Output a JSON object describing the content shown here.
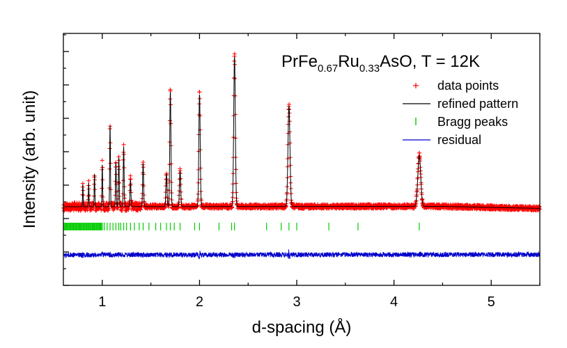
{
  "chart_data": {
    "type": "scatter",
    "title_parts": {
      "prefix": "PrFe",
      "sub1": "0.67",
      "mid": "Ru",
      "sub2": "0.33",
      "suffix": "AsO, T = 12K"
    },
    "xlabel": "d-spacing (Å)",
    "ylabel": "Intensity (arb. unit)",
    "xlim": [
      0.6,
      5.5
    ],
    "x_ticks": [
      "1",
      "2",
      "3",
      "4",
      "5"
    ],
    "y_ticks_labeled": false,
    "grid": false,
    "legend_placement": "top-right",
    "legend": [
      {
        "label": "data points",
        "marker": "plus",
        "color": "#ff0000"
      },
      {
        "label": "refined pattern",
        "marker": "line",
        "color": "#000000"
      },
      {
        "label": "Bragg peaks",
        "marker": "tick",
        "color": "#00cc00"
      },
      {
        "label": "residual",
        "marker": "line",
        "color": "#0000cc"
      }
    ],
    "background_level": 0.12,
    "peaks": [
      {
        "d": 4.26,
        "intensity": 0.34
      },
      {
        "d": 2.92,
        "intensity": 0.67
      },
      {
        "d": 2.36,
        "intensity": 1.0
      },
      {
        "d": 2.0,
        "intensity": 0.75
      },
      {
        "d": 1.8,
        "intensity": 0.24
      },
      {
        "d": 1.7,
        "intensity": 0.77
      },
      {
        "d": 1.66,
        "intensity": 0.22
      },
      {
        "d": 1.42,
        "intensity": 0.29
      },
      {
        "d": 1.29,
        "intensity": 0.18
      },
      {
        "d": 1.22,
        "intensity": 0.4
      },
      {
        "d": 1.17,
        "intensity": 0.33
      },
      {
        "d": 1.14,
        "intensity": 0.3
      },
      {
        "d": 1.08,
        "intensity": 0.55
      },
      {
        "d": 1.0,
        "intensity": 0.28
      },
      {
        "d": 0.92,
        "intensity": 0.22
      },
      {
        "d": 0.86,
        "intensity": 0.16
      },
      {
        "d": 0.8,
        "intensity": 0.15
      }
    ],
    "bragg_positions": [
      4.26,
      3.63,
      3.33,
      3.0,
      2.92,
      2.84,
      2.69,
      2.36,
      2.33,
      2.2,
      2.0,
      1.95,
      1.8,
      1.74,
      1.7,
      1.66,
      1.6,
      1.55,
      1.48,
      1.42,
      1.38,
      1.33,
      1.29,
      1.25,
      1.22,
      1.19,
      1.17,
      1.14,
      1.11,
      1.08,
      1.05,
      1.02,
      1.0,
      0.98,
      0.96,
      0.94,
      0.92,
      0.9,
      0.88,
      0.86,
      0.84,
      0.82,
      0.8,
      0.78,
      0.76,
      0.74,
      0.72,
      0.7,
      0.68,
      0.66,
      0.64,
      0.62
    ]
  }
}
